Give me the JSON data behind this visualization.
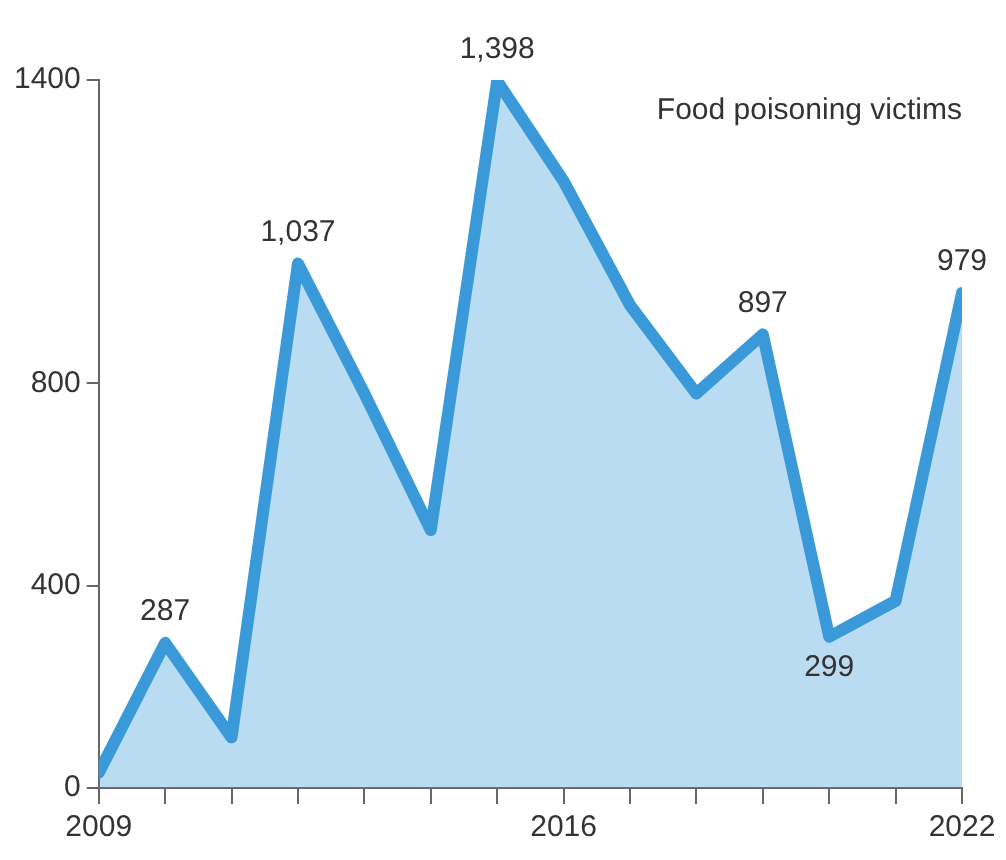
{
  "chart_data": {
    "type": "area",
    "x": [
      2009,
      2010,
      2011,
      2012,
      2013,
      2014,
      2015,
      2016,
      2017,
      2018,
      2019,
      2020,
      2021,
      2022
    ],
    "series": [
      {
        "color": "#3a9ad9",
        "values": [
          30,
          287,
          100,
          1037,
          780,
          510,
          1398,
          1200,
          955,
          780,
          897,
          299,
          370,
          979
        ],
        "value_labels": [
          null,
          "287",
          null,
          "1,037",
          null,
          null,
          "1,398",
          null,
          null,
          null,
          "897",
          "299",
          null,
          "979"
        ]
      }
    ],
    "xlim": [
      2009,
      2022
    ],
    "xticks": [
      2009,
      {
        "value": 2010,
        "label": null
      },
      {
        "value": 2011,
        "label": null
      },
      {
        "value": 2012,
        "label": null
      },
      {
        "value": 2013,
        "label": null
      },
      {
        "value": 2014,
        "label": null
      },
      {
        "value": 2015,
        "label": null
      },
      2016,
      {
        "value": 2017,
        "label": null
      },
      {
        "value": 2018,
        "label": null
      },
      {
        "value": 2019,
        "label": null
      },
      {
        "value": 2020,
        "label": null
      },
      {
        "value": 2021,
        "label": null
      },
      2022
    ],
    "ylim": [
      0,
      1400
    ],
    "yticks": [
      0,
      400,
      800,
      1400
    ],
    "annotations": [
      "Food poisoning victims"
    ],
    "grid": false,
    "legend": false
  }
}
